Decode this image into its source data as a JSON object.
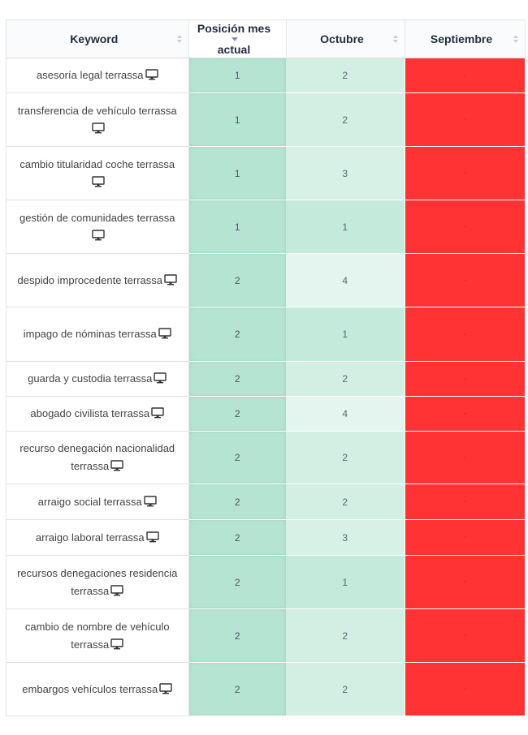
{
  "table": {
    "headers": {
      "keyword": "Keyword",
      "position_line1": "Posición mes",
      "position_line2": "actual",
      "october": "Octubre",
      "september": "Septiembre"
    },
    "device_icon": "desktop-icon",
    "rows": [
      {
        "keyword": "asesoría legal terrassa",
        "position": "1",
        "october": "2",
        "september": "-"
      },
      {
        "keyword": "transferencia de vehículo terrassa",
        "position": "1",
        "october": "2",
        "september": "-"
      },
      {
        "keyword": "cambio titularidad coche terrassa",
        "position": "1",
        "october": "3",
        "september": "-"
      },
      {
        "keyword": "gestión de comunidades terrassa",
        "position": "1",
        "october": "1",
        "september": "-"
      },
      {
        "keyword": "despido improcedente terrassa",
        "position": "2",
        "october": "4",
        "september": "-"
      },
      {
        "keyword": "impago de nóminas terrassa",
        "position": "2",
        "october": "1",
        "september": "-"
      },
      {
        "keyword": "guarda y custodia terrassa",
        "position": "2",
        "october": "2",
        "september": "-"
      },
      {
        "keyword": "abogado civilista terrassa",
        "position": "2",
        "october": "4",
        "september": "-"
      },
      {
        "keyword": "recurso denegación nacionalidad terrassa",
        "position": "2",
        "october": "2",
        "september": "-"
      },
      {
        "keyword": "arraigo social terrassa",
        "position": "2",
        "october": "2",
        "september": "-"
      },
      {
        "keyword": "arraigo laboral terrassa",
        "position": "2",
        "october": "3",
        "september": "-"
      },
      {
        "keyword": "recursos denegaciones residencia terrassa",
        "position": "2",
        "october": "1",
        "september": "-"
      },
      {
        "keyword": "cambio de nombre de vehículo terrassa",
        "position": "2",
        "october": "2",
        "september": "-"
      },
      {
        "keyword": "embargos vehículos terrassa",
        "position": "2",
        "october": "2",
        "september": "-"
      }
    ]
  },
  "colors": {
    "position_bg": "#b5e5d2",
    "october_scale": {
      "1": "#c3eadb",
      "2": "#d3efe4",
      "3": "#d8f1e7",
      "4": "#e3f5ee"
    },
    "september_bg": "#ff3333"
  }
}
